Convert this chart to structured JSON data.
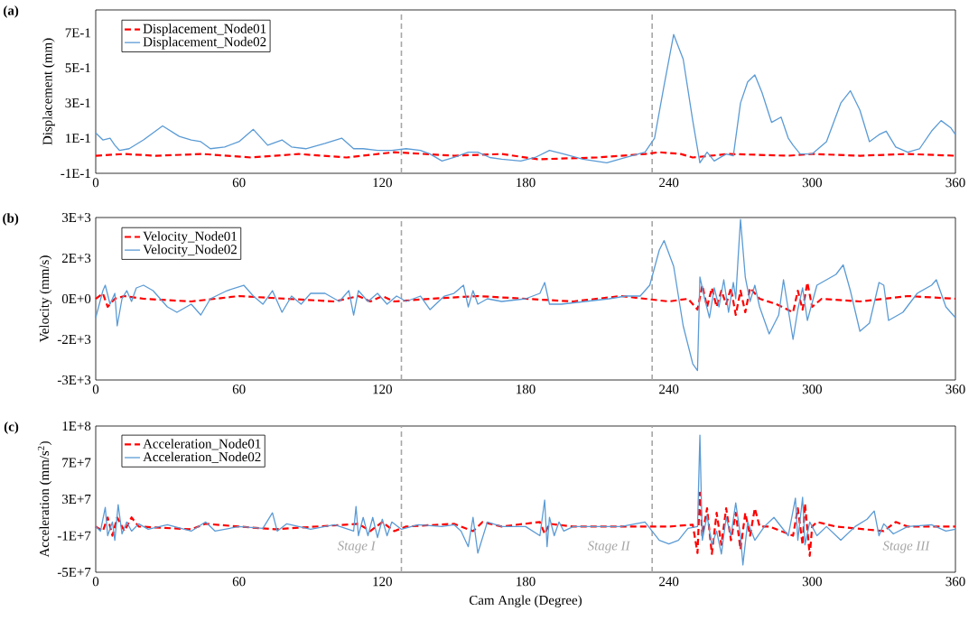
{
  "chart_data": [
    {
      "type": "line",
      "title": "(a)",
      "ylabel": "Displacement (mm)",
      "legend": "top left",
      "xlim": [
        0,
        360
      ],
      "xticks": [
        0,
        60,
        120,
        180,
        240,
        300,
        360
      ],
      "ylim": [
        -0.1,
        0.83
      ],
      "yticks": [
        {
          "value": -0.1,
          "label": "-1E-1"
        },
        {
          "value": 0.1,
          "label": "1E-1"
        },
        {
          "value": 0.3,
          "label": "3E-1"
        },
        {
          "value": 0.5,
          "label": "5E-1"
        },
        {
          "value": 0.7,
          "label": "7E-1"
        }
      ],
      "ref_lines": [
        {
          "axis": "x",
          "value": 128,
          "color": "#a6a6a6",
          "line_style": "dashed"
        },
        {
          "axis": "x",
          "value": 233,
          "color": "#a6a6a6",
          "line_style": "dashed"
        }
      ],
      "series": [
        {
          "name": "Displacement_Node01",
          "color": "#ff0000",
          "line_style": "dashed",
          "x": [
            0,
            12,
            25,
            45,
            65,
            85,
            105,
            125,
            150,
            170,
            185,
            210,
            230,
            236,
            245,
            250,
            265,
            290,
            300,
            320,
            340,
            360
          ],
          "values": [
            0,
            0.01,
            0,
            0.01,
            -0.01,
            0.01,
            -0.01,
            0.02,
            0,
            0.01,
            -0.02,
            -0.01,
            0.01,
            0.02,
            0.01,
            -0.01,
            0.01,
            0,
            0.01,
            0,
            0.01,
            0
          ]
        },
        {
          "name": "Displacement_Node02",
          "color": "#5b9bd5",
          "line_style": "solid",
          "x": [
            0,
            3,
            6,
            8,
            10,
            14,
            20,
            28,
            35,
            40,
            44,
            48,
            54,
            60,
            66,
            72,
            76,
            78,
            82,
            88,
            96,
            103,
            108,
            112,
            118,
            124,
            130,
            136,
            140,
            145,
            150,
            156,
            160,
            165,
            170,
            178,
            184,
            190,
            196,
            204,
            214,
            222,
            230,
            234,
            238,
            242,
            246,
            250,
            253,
            256,
            259,
            264,
            267,
            270,
            273,
            276,
            279,
            283,
            287,
            290,
            292,
            295,
            300,
            306,
            312,
            316,
            320,
            324,
            328,
            331,
            335,
            340,
            345,
            350,
            354,
            358,
            360
          ],
          "values": [
            0.13,
            0.09,
            0.1,
            0.06,
            0.03,
            0.04,
            0.09,
            0.17,
            0.11,
            0.09,
            0.08,
            0.04,
            0.05,
            0.08,
            0.15,
            0.06,
            0.08,
            0.09,
            0.05,
            0.04,
            0.07,
            0.1,
            0.04,
            0.04,
            0.03,
            0.03,
            0.04,
            0.03,
            0.01,
            -0.03,
            -0.01,
            0.02,
            0.02,
            -0.01,
            -0.02,
            -0.03,
            -0.01,
            0.03,
            0.01,
            -0.02,
            -0.04,
            -0.01,
            0.02,
            0.1,
            0.4,
            0.69,
            0.55,
            0.2,
            -0.04,
            0.02,
            -0.03,
            0.01,
            0.0,
            0.3,
            0.42,
            0.46,
            0.36,
            0.19,
            0.22,
            0.1,
            0.06,
            0.01,
            0.01,
            0.08,
            0.3,
            0.37,
            0.26,
            0.08,
            0.12,
            0.14,
            0.05,
            0.02,
            0.04,
            0.14,
            0.2,
            0.16,
            0.12
          ]
        }
      ]
    },
    {
      "type": "line",
      "title": "(b)",
      "ylabel": "Velocity (mm/s)",
      "legend": "top left",
      "xlim": [
        0,
        360
      ],
      "xticks": [
        0,
        60,
        120,
        180,
        240,
        300,
        360
      ],
      "ylim": [
        -3000,
        3000
      ],
      "yticks": [
        {
          "value": -3000,
          "label": "-3E+3"
        },
        {
          "value": -1500,
          "label": "-2E+3"
        },
        {
          "value": 0,
          "label": "0E+0"
        },
        {
          "value": 1500,
          "label": "2E+3"
        },
        {
          "value": 3000,
          "label": "3E+3"
        }
      ],
      "ref_lines": [
        {
          "axis": "x",
          "value": 128,
          "color": "#a6a6a6",
          "line_style": "dashed"
        },
        {
          "axis": "x",
          "value": 233,
          "color": "#a6a6a6",
          "line_style": "dashed"
        }
      ],
      "series": [
        {
          "name": "Velocity_Node01",
          "color": "#ff0000",
          "line_style": "dashed",
          "x": [
            0,
            3,
            5,
            8,
            12,
            20,
            40,
            60,
            80,
            100,
            110,
            115,
            120,
            125,
            140,
            160,
            180,
            200,
            220,
            240,
            248,
            252,
            254,
            256,
            258,
            260,
            262,
            264,
            266,
            268,
            270,
            272,
            274,
            278,
            285,
            292,
            294,
            296,
            298,
            300,
            304,
            320,
            340,
            360
          ],
          "values": [
            0,
            200,
            -300,
            0,
            100,
            0,
            -100,
            100,
            0,
            -100,
            100,
            -100,
            100,
            -100,
            0,
            100,
            0,
            -100,
            100,
            -100,
            0,
            -400,
            500,
            -300,
            400,
            -300,
            300,
            -200,
            400,
            -600,
            300,
            -500,
            400,
            0,
            -200,
            -500,
            300,
            -400,
            600,
            -300,
            0,
            -100,
            100,
            0
          ]
        },
        {
          "name": "Velocity_Node02",
          "color": "#5b9bd5",
          "line_style": "solid",
          "x": [
            0,
            3,
            4,
            6,
            8,
            9,
            11,
            13,
            15,
            17,
            20,
            24,
            30,
            34,
            40,
            44,
            48,
            55,
            62,
            66,
            70,
            74,
            78,
            82,
            86,
            90,
            96,
            102,
            106,
            108,
            110,
            114,
            118,
            122,
            126,
            130,
            136,
            140,
            146,
            150,
            154,
            156,
            158,
            160,
            164,
            170,
            180,
            186,
            188,
            190,
            195,
            205,
            215,
            222,
            228,
            232,
            236,
            238,
            242,
            246,
            250,
            252,
            253,
            255,
            257,
            259,
            261,
            263,
            265,
            267,
            268,
            269,
            270,
            272,
            274,
            276,
            278,
            282,
            286,
            288,
            292,
            294,
            296,
            298,
            302,
            306,
            310,
            313,
            316,
            320,
            324,
            328,
            330,
            332,
            338,
            344,
            350,
            352,
            356,
            360
          ],
          "values": [
            -700,
            300,
            500,
            -200,
            200,
            -1000,
            0,
            300,
            -100,
            400,
            500,
            300,
            -300,
            -500,
            -200,
            -600,
            0,
            300,
            500,
            100,
            -200,
            300,
            -500,
            100,
            -200,
            200,
            200,
            -100,
            300,
            -600,
            300,
            -100,
            200,
            -200,
            100,
            -100,
            100,
            -400,
            100,
            200,
            500,
            -300,
            300,
            -200,
            0,
            -100,
            0,
            200,
            600,
            -200,
            -200,
            -100,
            0,
            100,
            100,
            500,
            1800,
            2150,
            1200,
            -1000,
            -2400,
            -2650,
            800,
            0,
            -700,
            400,
            -300,
            700,
            -500,
            600,
            0,
            1500,
            2930,
            800,
            -100,
            500,
            -300,
            -1300,
            -600,
            700,
            -1500,
            -400,
            400,
            -800,
            500,
            700,
            900,
            1250,
            300,
            -1200,
            -900,
            600,
            500,
            -800,
            -500,
            200,
            500,
            700,
            -300,
            -700
          ]
        }
      ]
    },
    {
      "type": "line",
      "title": "(c)",
      "ylabel": "Acceleration (mm/s$^{2}$)",
      "xlabel": "Cam Angle (Degree)",
      "legend": "top left",
      "xlim": [
        0,
        360
      ],
      "xticks": [
        0,
        60,
        120,
        180,
        240,
        300,
        360
      ],
      "ylim": [
        -50000000.0,
        110000000.0
      ],
      "yticks": [
        {
          "value": -50000000.0,
          "label": "-5E+7"
        },
        {
          "value": -10000000.0,
          "label": "-1E+7"
        },
        {
          "value": 30000000.0,
          "label": "3E+7"
        },
        {
          "value": 70000000.0,
          "label": "7E+7"
        },
        {
          "value": 110000000.0,
          "label": "1E+8"
        }
      ],
      "ref_lines": [
        {
          "axis": "x",
          "value": 128,
          "color": "#a6a6a6",
          "line_style": "dashed"
        },
        {
          "axis": "x",
          "value": 233,
          "color": "#a6a6a6",
          "line_style": "dashed"
        }
      ],
      "annotations": [
        "Stage I",
        "Stage II",
        "Stage III"
      ],
      "series": [
        {
          "name": "Acceleration_Node01",
          "color": "#ff0000",
          "line_style": "dashed",
          "x": [
            0,
            3,
            5,
            7,
            9,
            12,
            15,
            18,
            40,
            46,
            60,
            75,
            110,
            115,
            120,
            125,
            130,
            150,
            158,
            162,
            170,
            186,
            188,
            190,
            200,
            240,
            250,
            252,
            253,
            254,
            256,
            258,
            260,
            262,
            264,
            266,
            268,
            270,
            272,
            274,
            276,
            278,
            282,
            292,
            294,
            296,
            297,
            299,
            300,
            302,
            310,
            330,
            335,
            340,
            360
          ],
          "values": [
            0,
            -5000000.0,
            10000000.0,
            -10000000.0,
            10000000.0,
            -5000000.0,
            10000000.0,
            0,
            -3000000.0,
            3000000.0,
            0,
            -3000000.0,
            3000000.0,
            -5000000.0,
            5000000.0,
            -5000000.0,
            0,
            3000000.0,
            -5000000.0,
            5000000.0,
            0,
            5000000.0,
            -8000000.0,
            3000000.0,
            0,
            0,
            2000000.0,
            -29000000.0,
            37000000.0,
            -10000000.0,
            20000000.0,
            -30000000.0,
            15000000.0,
            -20000000.0,
            20000000.0,
            -15000000.0,
            15000000.0,
            -25000000.0,
            15000000.0,
            -10000000.0,
            20000000.0,
            0,
            0,
            -10000000.0,
            20000000.0,
            -20000000.0,
            25000000.0,
            -32000000.0,
            0,
            5000000.0,
            0,
            -5000000.0,
            5000000.0,
            0,
            0
          ]
        },
        {
          "name": "Acceleration_Node02",
          "color": "#5b9bd5",
          "line_style": "solid",
          "x": [
            0,
            2,
            4,
            5,
            7,
            8,
            9.4,
            11,
            13,
            15,
            18,
            22,
            30,
            40,
            46,
            50,
            60,
            70,
            74,
            76,
            80,
            90,
            100,
            108,
            109,
            110,
            112,
            114,
            116,
            118,
            120,
            122,
            124,
            128,
            135,
            145,
            150,
            153,
            156,
            158,
            160,
            164,
            170,
            180,
            186,
            188,
            189,
            190,
            192,
            194,
            196,
            200,
            220,
            230,
            236,
            240,
            244,
            248,
            252,
            253,
            254,
            256,
            258,
            260,
            262,
            264,
            266,
            268,
            270,
            271,
            273,
            276,
            280,
            284,
            290,
            293,
            294,
            296,
            297,
            299,
            302,
            306,
            312,
            318,
            323,
            326,
            328,
            330,
            334,
            340,
            350,
            356,
            360
          ],
          "values": [
            0,
            -5000000.0,
            21000000.0,
            -10000000.0,
            5000000.0,
            -15000000.0,
            24000000.0,
            -8000000.0,
            5000000.0,
            -5000000.0,
            3000000.0,
            -3000000.0,
            2000000.0,
            -5000000.0,
            5000000.0,
            -5000000.0,
            0,
            -2000000.0,
            15000000.0,
            -5000000.0,
            3000000.0,
            -3000000.0,
            2000000.0,
            -5000000.0,
            22000000.0,
            -10000000.0,
            10000000.0,
            -10000000.0,
            10000000.0,
            -12000000.0,
            8000000.0,
            -10000000.0,
            5000000.0,
            -3000000.0,
            2000000.0,
            0,
            2000000.0,
            -5000000.0,
            -22000000.0,
            10000000.0,
            -29000000.0,
            5000000.0,
            0,
            0,
            -10000000.0,
            29000000.0,
            -22000000.0,
            10000000.0,
            -10000000.0,
            5000000.0,
            -5000000.0,
            0,
            0,
            5000000.0,
            -15000000.0,
            -19000000.0,
            -15000000.0,
            -2000000.0,
            0,
            100000000.0,
            -15000000.0,
            12000000.0,
            -20000000.0,
            -5000000.0,
            -30000000.0,
            10000000.0,
            -10000000.0,
            26000000.0,
            -10000000.0,
            -42000000.0,
            5000000.0,
            -15000000.0,
            0,
            10000000.0,
            -10000000.0,
            31000000.0,
            -15000000.0,
            32000000.0,
            -20000000.0,
            5000000.0,
            -10000000.0,
            0,
            -15000000.0,
            0,
            8000000.0,
            17000000.0,
            -10000000.0,
            3000000.0,
            -8000000.0,
            0,
            2000000.0,
            -5000000.0,
            -3000000.0
          ]
        }
      ]
    }
  ]
}
